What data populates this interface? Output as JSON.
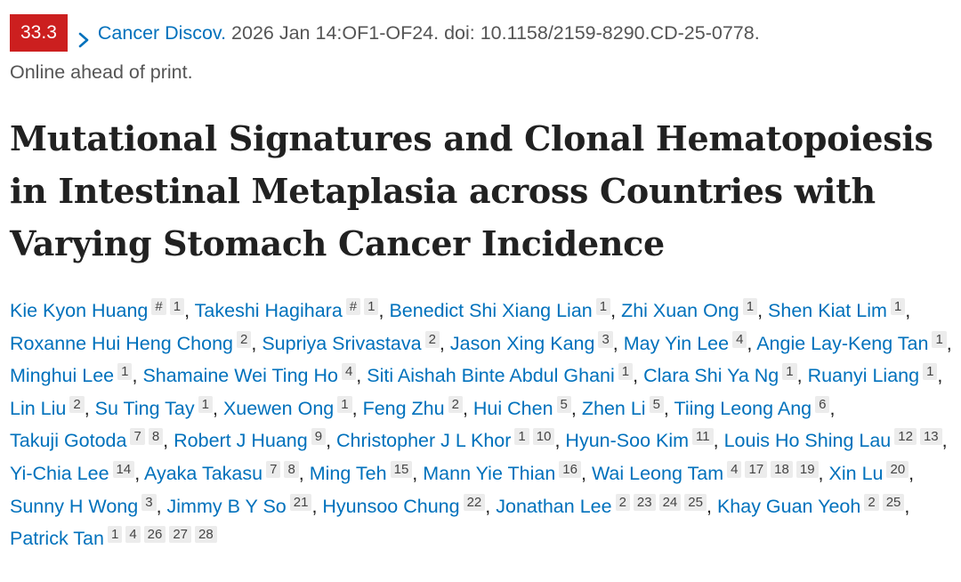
{
  "badge": {
    "impact": "33.3",
    "color": "#cc1f1f"
  },
  "citation": {
    "journal": "Cancer Discov.",
    "details": "2026 Jan 14:OF1-OF24. doi: 10.1158/2159-8290.CD-25-0778.",
    "status": "Online ahead of print."
  },
  "article": {
    "title": "Mutational Signatures and Clonal Hematopoiesis in Intestinal Metaplasia across Countries with Varying Stomach Cancer Incidence"
  },
  "authors": [
    {
      "name": "Kie Kyon Huang",
      "affiliations": [
        "#",
        "1"
      ]
    },
    {
      "name": "Takeshi Hagihara",
      "affiliations": [
        "#",
        "1"
      ]
    },
    {
      "name": "Benedict Shi Xiang Lian",
      "affiliations": [
        "1"
      ]
    },
    {
      "name": "Zhi Xuan Ong",
      "affiliations": [
        "1"
      ]
    },
    {
      "name": "Shen Kiat Lim",
      "affiliations": [
        "1"
      ]
    },
    {
      "name": "Roxanne Hui Heng Chong",
      "affiliations": [
        "2"
      ]
    },
    {
      "name": "Supriya Srivastava",
      "affiliations": [
        "2"
      ]
    },
    {
      "name": "Jason Xing Kang",
      "affiliations": [
        "3"
      ]
    },
    {
      "name": "May Yin Lee",
      "affiliations": [
        "4"
      ]
    },
    {
      "name": "Angie Lay-Keng Tan",
      "affiliations": [
        "1"
      ]
    },
    {
      "name": "Minghui Lee",
      "affiliations": [
        "1"
      ]
    },
    {
      "name": "Shamaine Wei Ting Ho",
      "affiliations": [
        "4"
      ]
    },
    {
      "name": "Siti Aishah Binte Abdul Ghani",
      "affiliations": [
        "1"
      ]
    },
    {
      "name": "Clara Shi Ya Ng",
      "affiliations": [
        "1"
      ]
    },
    {
      "name": "Ruanyi Liang",
      "affiliations": [
        "1"
      ]
    },
    {
      "name": "Lin Liu",
      "affiliations": [
        "2"
      ]
    },
    {
      "name": "Su Ting Tay",
      "affiliations": [
        "1"
      ]
    },
    {
      "name": "Xuewen Ong",
      "affiliations": [
        "1"
      ]
    },
    {
      "name": "Feng Zhu",
      "affiliations": [
        "2"
      ]
    },
    {
      "name": "Hui Chen",
      "affiliations": [
        "5"
      ]
    },
    {
      "name": "Zhen Li",
      "affiliations": [
        "5"
      ]
    },
    {
      "name": "Tiing Leong Ang",
      "affiliations": [
        "6"
      ]
    },
    {
      "name": "Takuji Gotoda",
      "affiliations": [
        "7",
        "8"
      ]
    },
    {
      "name": "Robert J Huang",
      "affiliations": [
        "9"
      ]
    },
    {
      "name": "Christopher J L Khor",
      "affiliations": [
        "1",
        "10"
      ]
    },
    {
      "name": "Hyun-Soo Kim",
      "affiliations": [
        "11"
      ]
    },
    {
      "name": "Louis Ho Shing Lau",
      "affiliations": [
        "12",
        "13"
      ]
    },
    {
      "name": "Yi-Chia Lee",
      "affiliations": [
        "14"
      ]
    },
    {
      "name": "Ayaka Takasu",
      "affiliations": [
        "7",
        "8"
      ]
    },
    {
      "name": "Ming Teh",
      "affiliations": [
        "15"
      ]
    },
    {
      "name": "Mann Yie Thian",
      "affiliations": [
        "16"
      ]
    },
    {
      "name": "Wai Leong Tam",
      "affiliations": [
        "4",
        "17",
        "18",
        "19"
      ]
    },
    {
      "name": "Xin Lu",
      "affiliations": [
        "20"
      ]
    },
    {
      "name": "Sunny H Wong",
      "affiliations": [
        "3"
      ]
    },
    {
      "name": "Jimmy B Y So",
      "affiliations": [
        "21"
      ]
    },
    {
      "name": "Hyunsoo Chung",
      "affiliations": [
        "22"
      ]
    },
    {
      "name": "Jonathan Lee",
      "affiliations": [
        "2",
        "23",
        "24",
        "25"
      ]
    },
    {
      "name": "Khay Guan Yeoh",
      "affiliations": [
        "2",
        "25"
      ]
    },
    {
      "name": "Patrick Tan",
      "affiliations": [
        "1",
        "4",
        "26",
        "27",
        "28"
      ]
    }
  ],
  "separator": ","
}
